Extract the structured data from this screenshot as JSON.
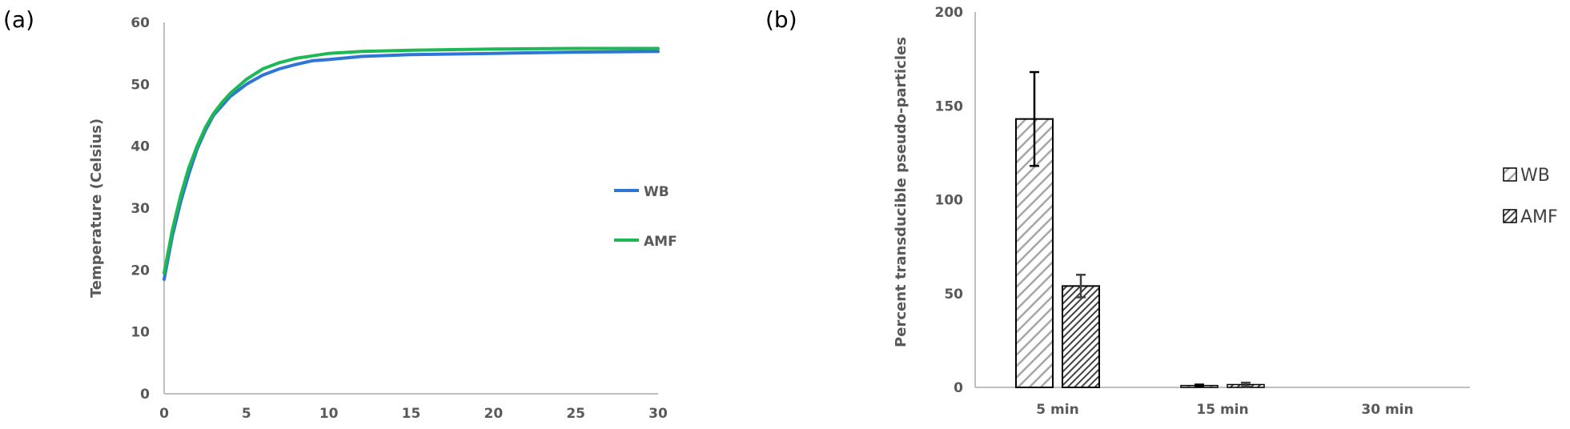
{
  "colors": {
    "wb": "#2E75D6",
    "amf": "#1DB954",
    "axis": "#BFBFBF",
    "text": "#595959",
    "bar_edge": "#000000"
  },
  "panels": {
    "a_label": "(a)",
    "b_label": "(b)"
  },
  "chart_data": [
    {
      "type": "line",
      "panel": "(a)",
      "title": "",
      "xlabel": "",
      "ylabel": "Temperature (Celsius)",
      "xlim": [
        0,
        30
      ],
      "ylim": [
        0,
        60
      ],
      "xticks": [
        0,
        5,
        10,
        15,
        20,
        25,
        30
      ],
      "yticks": [
        0,
        10,
        20,
        30,
        40,
        50,
        60
      ],
      "grid": false,
      "legend_position": "right",
      "series": [
        {
          "name": "WB",
          "color": "#2E75D6",
          "x": [
            0,
            0.5,
            1,
            1.5,
            2,
            2.5,
            3,
            3.5,
            4,
            5,
            6,
            7,
            8,
            9,
            10,
            12,
            15,
            20,
            25,
            30
          ],
          "y": [
            18.5,
            25.5,
            31,
            35.5,
            39.5,
            42.5,
            45,
            46.5,
            48,
            50,
            51.5,
            52.5,
            53.2,
            53.8,
            54,
            54.5,
            54.8,
            55,
            55.2,
            55.3
          ]
        },
        {
          "name": "AMF",
          "color": "#1DB954",
          "x": [
            0,
            0.5,
            1,
            1.5,
            2,
            2.5,
            3,
            3.5,
            4,
            5,
            6,
            7,
            8,
            9,
            10,
            12,
            15,
            20,
            25,
            30
          ],
          "y": [
            19.5,
            26.5,
            32,
            36.5,
            40,
            43,
            45.3,
            47,
            48.5,
            50.8,
            52.5,
            53.5,
            54.2,
            54.6,
            55,
            55.3,
            55.5,
            55.7,
            55.8,
            55.8
          ]
        }
      ]
    },
    {
      "type": "bar",
      "panel": "(b)",
      "title": "",
      "xlabel": "",
      "ylabel": "Percent transducible pseudo-particles",
      "categories": [
        "5 min",
        "15 min",
        "30 min"
      ],
      "ylim": [
        0,
        200
      ],
      "yticks": [
        0,
        50,
        100,
        150,
        200
      ],
      "grid": false,
      "legend_position": "right",
      "series": [
        {
          "name": "WB",
          "pattern": "light-hatch",
          "values": [
            143,
            1,
            0
          ],
          "errors": [
            25,
            0.5,
            0
          ]
        },
        {
          "name": "AMF",
          "pattern": "dark-hatch",
          "values": [
            54,
            1.5,
            0
          ],
          "errors": [
            6,
            1,
            0
          ]
        }
      ]
    }
  ]
}
